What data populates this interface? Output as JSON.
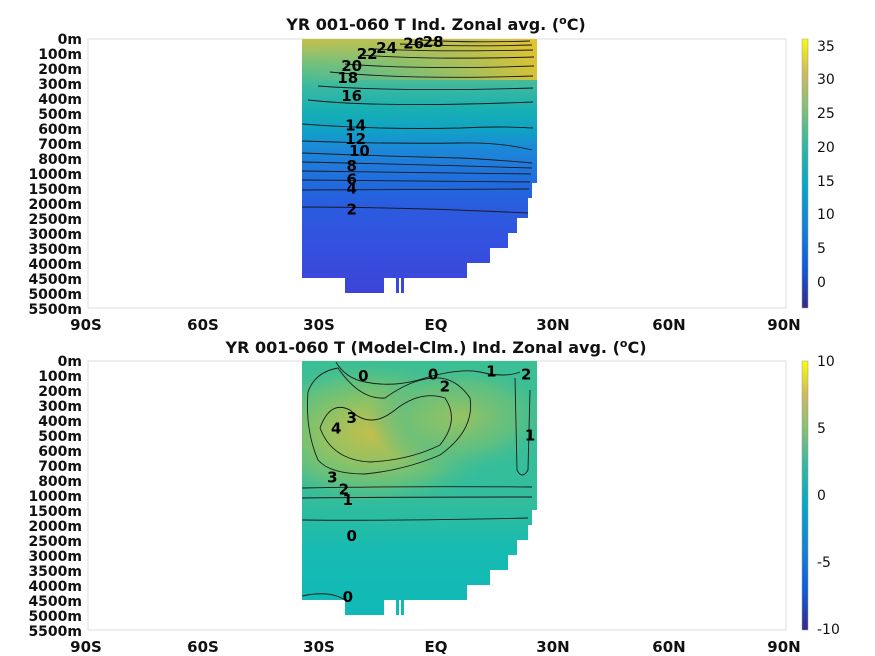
{
  "chart_data": [
    {
      "type": "heatmap",
      "title_main": "YR 001-060 T Ind. Zonal avg. (",
      "title_sup": "o",
      "title_end": "C)",
      "x_ticks": [
        "90S",
        "60S",
        "30S",
        "EQ",
        "30N",
        "60N",
        "90N"
      ],
      "x_values": [
        -90,
        -60,
        -30,
        0,
        30,
        60,
        90
      ],
      "y_ticks": [
        "0m",
        "100m",
        "200m",
        "300m",
        "400m",
        "500m",
        "600m",
        "700m",
        "800m",
        "1000m",
        "1500m",
        "2000m",
        "2500m",
        "3000m",
        "3500m",
        "4000m",
        "4500m",
        "5000m",
        "5500m"
      ],
      "colorbar_ticks": [
        "35",
        "30",
        "25",
        "20",
        "15",
        "10",
        "5",
        "0"
      ],
      "colorbar_values": [
        35,
        30,
        25,
        20,
        15,
        10,
        5,
        0
      ],
      "colorbar_range": [
        -4,
        36
      ],
      "colormap": "parula",
      "data_extent_lat": [
        -35,
        26
      ],
      "contour_labels": [
        {
          "text": "28",
          "lat": -1,
          "depth_index": 0.2
        },
        {
          "text": "26",
          "lat": -6,
          "depth_index": 0.3
        },
        {
          "text": "24",
          "lat": -13,
          "depth_index": 0.6
        },
        {
          "text": "22",
          "lat": -18,
          "depth_index": 1.0
        },
        {
          "text": "20",
          "lat": -22,
          "depth_index": 1.8
        },
        {
          "text": "18",
          "lat": -23,
          "depth_index": 2.6
        },
        {
          "text": "16",
          "lat": -22,
          "depth_index": 3.8
        },
        {
          "text": "14",
          "lat": -21,
          "depth_index": 5.8
        },
        {
          "text": "12",
          "lat": -21,
          "depth_index": 6.7
        },
        {
          "text": "10",
          "lat": -20,
          "depth_index": 7.5
        },
        {
          "text": "8",
          "lat": -22,
          "depth_index": 8.5
        },
        {
          "text": "6",
          "lat": -22,
          "depth_index": 9.4
        },
        {
          "text": "4",
          "lat": -22,
          "depth_index": 10.0
        },
        {
          "text": "2",
          "lat": -22,
          "depth_index": 11.4
        }
      ]
    },
    {
      "type": "heatmap",
      "title_main": "YR 001-060 T (Model-Clm.) Ind. Zonal avg. (",
      "title_sup": "o",
      "title_end": "C)",
      "x_ticks": [
        "90S",
        "60S",
        "30S",
        "EQ",
        "30N",
        "60N",
        "90N"
      ],
      "x_values": [
        -90,
        -60,
        -30,
        0,
        30,
        60,
        90
      ],
      "y_ticks": [
        "0m",
        "100m",
        "200m",
        "300m",
        "400m",
        "500m",
        "600m",
        "700m",
        "800m",
        "1000m",
        "1500m",
        "2000m",
        "2500m",
        "3000m",
        "3500m",
        "4000m",
        "4500m",
        "5000m",
        "5500m"
      ],
      "colorbar_ticks": [
        "10",
        "5",
        "0",
        "-5",
        "-10"
      ],
      "colorbar_values": [
        10,
        5,
        0,
        -5,
        -10
      ],
      "colorbar_range": [
        -10,
        10
      ],
      "colormap": "parula",
      "data_extent_lat": [
        -35,
        26
      ],
      "contour_labels": [
        {
          "text": "0",
          "lat": -19,
          "depth_index": 1.0
        },
        {
          "text": "0",
          "lat": -1,
          "depth_index": 0.9
        },
        {
          "text": "2",
          "lat": 2,
          "depth_index": 1.7
        },
        {
          "text": "1",
          "lat": 14,
          "depth_index": 0.7
        },
        {
          "text": "2",
          "lat": 23,
          "depth_index": 0.9
        },
        {
          "text": "3",
          "lat": -22,
          "depth_index": 3.8
        },
        {
          "text": "4",
          "lat": -26,
          "depth_index": 4.5
        },
        {
          "text": "1",
          "lat": 24,
          "depth_index": 5.0
        },
        {
          "text": "3",
          "lat": -27,
          "depth_index": 7.8
        },
        {
          "text": "2",
          "lat": -24,
          "depth_index": 8.6
        },
        {
          "text": "1",
          "lat": -23,
          "depth_index": 9.3
        },
        {
          "text": "0",
          "lat": -22,
          "depth_index": 11.7
        },
        {
          "text": "0",
          "lat": -23,
          "depth_index": 15.8
        }
      ]
    }
  ]
}
